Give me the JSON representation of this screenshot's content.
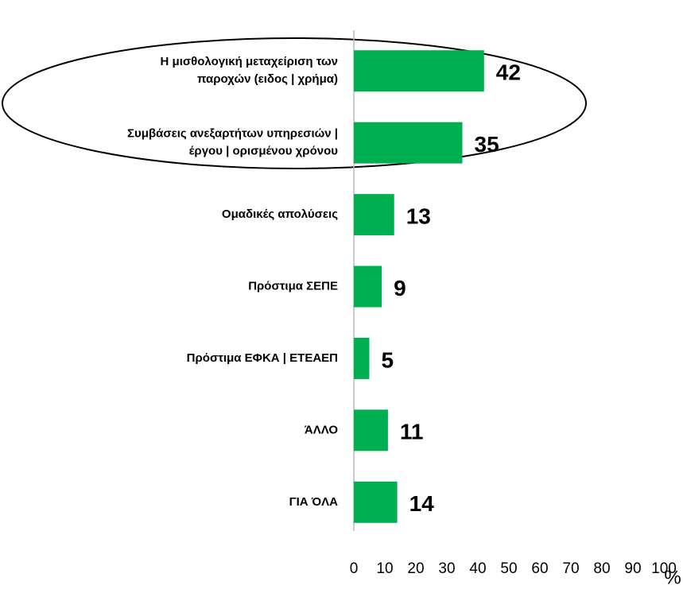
{
  "chart_data": {
    "type": "barh",
    "categories": [
      [
        "Η μισθολογική μεταχείριση των",
        "παροχών (ειδος | χρήμα)"
      ],
      [
        "Συμβάσεις ανεξαρτήτων υπηρεσιών |",
        "έργου | ορισμένου χρόνου"
      ],
      [
        "Ομαδικές απολύσεις"
      ],
      [
        "Πρόστιμα ΣΕΠΕ"
      ],
      [
        "Πρόστιμα ΕΦΚΑ | ΕΤΕΑΕΠ"
      ],
      [
        "ΆΛΛΟ"
      ],
      [
        "ΓΙΑ ΌΛΑ"
      ]
    ],
    "values": [
      42,
      35,
      13,
      9,
      5,
      11,
      14
    ],
    "color": "#00b050",
    "xlim": [
      0,
      100
    ],
    "xticks": [
      0,
      10,
      20,
      30,
      40,
      50,
      60,
      70,
      80,
      90,
      100
    ],
    "x_label": "%"
  }
}
